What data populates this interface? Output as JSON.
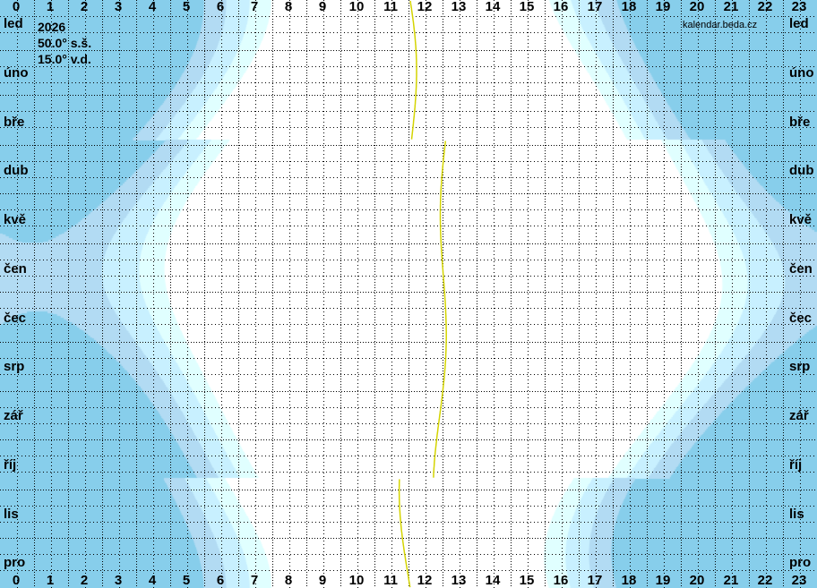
{
  "chart_data": {
    "type": "heatmap",
    "title": "",
    "year": "2026",
    "latitude_label": "50.0° s.š.",
    "longitude_label": "15.0° v.d.",
    "latitude": 50.0,
    "longitude": 15.0,
    "watermark": "kalendar.beda.cz",
    "x_tick_labels": [
      "0",
      "1",
      "2",
      "3",
      "4",
      "5",
      "6",
      "7",
      "8",
      "9",
      "10",
      "11",
      "12",
      "13",
      "14",
      "15",
      "16",
      "17",
      "18",
      "19",
      "20",
      "21",
      "22",
      "23"
    ],
    "y_tick_labels": [
      "led",
      "úno",
      "bře",
      "dub",
      "kvě",
      "čen",
      "čec",
      "srp",
      "zář",
      "říj",
      "lis",
      "pro"
    ],
    "xlim": [
      0,
      24
    ],
    "bands": [
      {
        "threshold_deg": null,
        "color": "#87ceeb"
      },
      {
        "threshold_deg": -18,
        "color": "#b2dbf3"
      },
      {
        "threshold_deg": -12,
        "color": "#c8f0ff"
      },
      {
        "threshold_deg": -6,
        "color": "#e0ffff"
      },
      {
        "threshold_deg": -0.833,
        "color": "#ffffff"
      }
    ],
    "solar_noon_color": "#d4d400",
    "grid": true
  }
}
